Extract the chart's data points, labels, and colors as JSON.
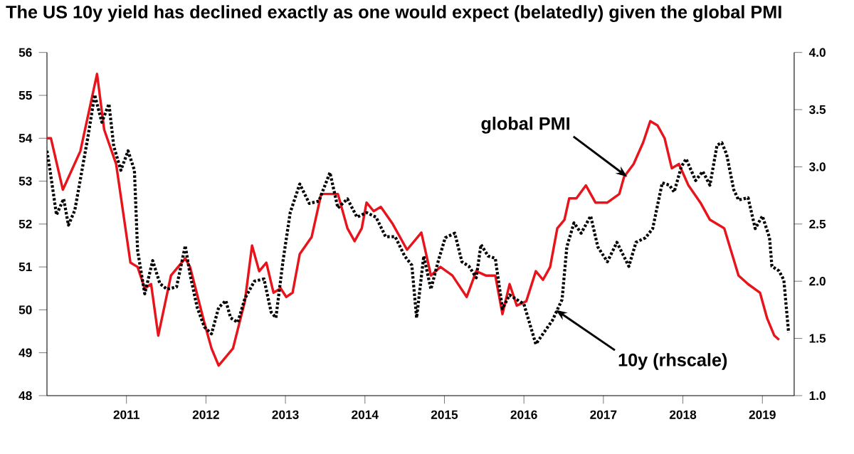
{
  "chart_data": {
    "type": "line",
    "title": "The US 10y yield has declined exactly as one would expect (belatedly) given the global PMI",
    "xlim": [
      2010,
      2019.4
    ],
    "xticks": [
      2011,
      2012,
      2013,
      2014,
      2015,
      2016,
      2017,
      2018,
      2019
    ],
    "ylim": [
      48,
      56
    ],
    "yticks": [
      48,
      49,
      50,
      51,
      52,
      53,
      54,
      55,
      56
    ],
    "y2lim": [
      1,
      4
    ],
    "y2ticks": [
      {
        "value": 1,
        "label": "1.0"
      },
      {
        "value": 1.5,
        "label": "1.5"
      },
      {
        "value": 2,
        "label": "2.0"
      },
      {
        "value": 2.5,
        "label": "2.5"
      },
      {
        "value": 3,
        "label": "3.0"
      },
      {
        "value": 3.5,
        "label": "3.5"
      },
      {
        "value": 4,
        "label": "4.0"
      }
    ],
    "grid": false,
    "marker": "none",
    "annotations": [
      {
        "text": "global PMI",
        "x": 2017.3,
        "y": 53.1
      },
      {
        "text": "10y (rhscale)",
        "x": 2016.4,
        "y": 50.0
      }
    ],
    "series": [
      {
        "color": "#e8141b",
        "line_style": "solid",
        "x": [
          2010.0,
          2010.05,
          2010.2,
          2010.42,
          2010.63,
          2010.72,
          2010.87,
          2011.05,
          2011.14,
          2011.23,
          2011.31,
          2011.4,
          2011.56,
          2011.74,
          2011.8,
          2011.98,
          2012.07,
          2012.16,
          2012.34,
          2012.49,
          2012.58,
          2012.67,
          2012.76,
          2012.85,
          2012.94,
          2013.01,
          2013.09,
          2013.18,
          2013.33,
          2013.45,
          2013.66,
          2013.78,
          2013.87,
          2013.96,
          2014.02,
          2014.11,
          2014.2,
          2014.35,
          2014.53,
          2014.71,
          2014.83,
          2014.95,
          2015.1,
          2015.28,
          2015.4,
          2015.52,
          2015.64,
          2015.73,
          2015.82,
          2015.91,
          2016.03,
          2016.15,
          2016.24,
          2016.33,
          2016.42,
          2016.51,
          2016.57,
          2016.66,
          2016.78,
          2016.9,
          2017.05,
          2017.2,
          2017.26,
          2017.38,
          2017.5,
          2017.59,
          2017.68,
          2017.77,
          2017.86,
          2017.95,
          2018.07,
          2018.22,
          2018.34,
          2018.52,
          2018.7,
          2018.82,
          2018.97,
          2019.06,
          2019.15,
          2019.21
        ],
        "values": [
          54.0,
          54.0,
          52.8,
          53.7,
          55.5,
          54.2,
          53.4,
          51.1,
          51.0,
          50.5,
          50.6,
          49.4,
          50.8,
          51.2,
          51.0,
          49.7,
          49.1,
          48.7,
          49.1,
          50.2,
          51.5,
          50.9,
          51.1,
          50.4,
          50.5,
          50.3,
          50.4,
          51.3,
          51.7,
          52.7,
          52.7,
          51.9,
          51.6,
          51.9,
          52.5,
          52.3,
          52.4,
          52.0,
          51.4,
          51.8,
          50.8,
          51.0,
          50.8,
          50.3,
          50.9,
          50.8,
          50.8,
          49.9,
          50.6,
          50.1,
          50.2,
          50.9,
          50.7,
          51.0,
          51.9,
          52.1,
          52.6,
          52.6,
          52.9,
          52.5,
          52.5,
          52.7,
          53.1,
          53.4,
          53.9,
          54.4,
          54.3,
          54.0,
          53.3,
          53.4,
          52.9,
          52.5,
          52.1,
          51.9,
          50.8,
          50.6,
          50.4,
          49.8,
          49.4,
          49.3
        ]
      },
      {
        "color": "#000000",
        "line_style": "dotted",
        "axis": "y2",
        "x": [
          2010.0,
          2010.03,
          2010.12,
          2010.21,
          2010.27,
          2010.35,
          2010.42,
          2010.52,
          2010.6,
          2010.69,
          2010.78,
          2010.84,
          2010.93,
          2011.02,
          2011.1,
          2011.14,
          2011.23,
          2011.33,
          2011.42,
          2011.51,
          2011.63,
          2011.74,
          2011.8,
          2011.89,
          2011.98,
          2012.07,
          2012.16,
          2012.25,
          2012.31,
          2012.4,
          2012.49,
          2012.61,
          2012.73,
          2012.82,
          2012.88,
          2012.97,
          2013.06,
          2013.18,
          2013.3,
          2013.42,
          2013.56,
          2013.66,
          2013.78,
          2013.9,
          2014.02,
          2014.14,
          2014.26,
          2014.38,
          2014.5,
          2014.59,
          2014.65,
          2014.74,
          2014.83,
          2014.92,
          2015.01,
          2015.13,
          2015.22,
          2015.31,
          2015.4,
          2015.46,
          2015.55,
          2015.64,
          2015.73,
          2015.82,
          2015.91,
          2016.0,
          2016.09,
          2016.15,
          2016.27,
          2016.36,
          2016.48,
          2016.54,
          2016.63,
          2016.72,
          2016.84,
          2016.93,
          2017.05,
          2017.17,
          2017.32,
          2017.41,
          2017.53,
          2017.62,
          2017.74,
          2017.83,
          2017.89,
          2017.98,
          2018.04,
          2018.16,
          2018.25,
          2018.34,
          2018.43,
          2018.49,
          2018.55,
          2018.64,
          2018.7,
          2018.82,
          2018.91,
          2019.0,
          2019.09,
          2019.12,
          2019.21,
          2019.27,
          2019.33
        ],
        "values": [
          3.14,
          3.01,
          2.58,
          2.72,
          2.49,
          2.62,
          2.89,
          3.28,
          3.63,
          3.39,
          3.55,
          3.18,
          2.97,
          3.14,
          2.97,
          2.27,
          1.89,
          2.18,
          1.98,
          1.93,
          1.95,
          2.31,
          2.06,
          1.77,
          1.6,
          1.54,
          1.77,
          1.83,
          1.68,
          1.64,
          1.85,
          2.0,
          2.02,
          1.73,
          1.68,
          2.18,
          2.6,
          2.85,
          2.68,
          2.7,
          2.95,
          2.64,
          2.72,
          2.56,
          2.6,
          2.56,
          2.39,
          2.39,
          2.22,
          2.14,
          1.68,
          2.22,
          1.93,
          2.17,
          2.38,
          2.42,
          2.17,
          2.13,
          2.03,
          2.32,
          2.22,
          2.2,
          1.76,
          1.88,
          1.84,
          1.8,
          1.59,
          1.45,
          1.57,
          1.66,
          1.84,
          2.3,
          2.51,
          2.42,
          2.57,
          2.3,
          2.17,
          2.34,
          2.13,
          2.34,
          2.38,
          2.46,
          2.86,
          2.84,
          2.78,
          3.0,
          3.07,
          2.88,
          2.96,
          2.84,
          3.19,
          3.21,
          3.11,
          2.8,
          2.71,
          2.73,
          2.46,
          2.57,
          2.38,
          2.13,
          2.09,
          2.01,
          1.55
        ]
      }
    ]
  }
}
